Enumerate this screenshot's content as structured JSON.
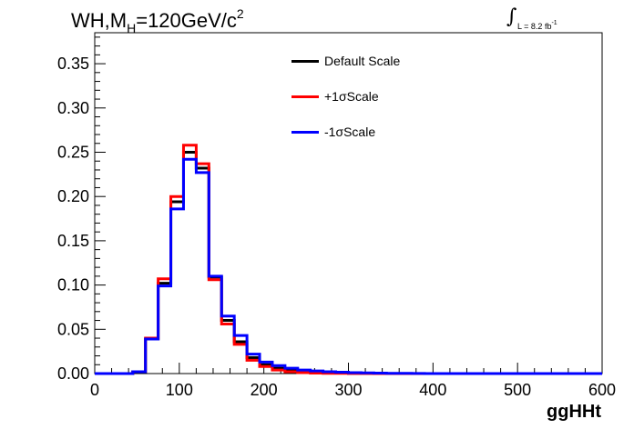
{
  "chart_data": {
    "type": "line",
    "title": "WH,M",
    "title_sub": "H",
    "title_rest": "=120GeV/c",
    "title_sup": "2",
    "luminosity": {
      "symbol": "∫",
      "text": "L = 8.2 fb",
      "sup": "-1"
    },
    "xlabel": "ggHHt",
    "ylabel": "",
    "xlim": [
      0,
      600
    ],
    "ylim": [
      0,
      0.385
    ],
    "xticks": [
      0,
      100,
      200,
      300,
      400,
      500,
      600
    ],
    "yticks": [
      0.0,
      0.05,
      0.1,
      0.15,
      0.2,
      0.25,
      0.3,
      0.35
    ],
    "ytick_labels": [
      "0.00",
      "0.05",
      "0.10",
      "0.15",
      "0.20",
      "0.25",
      "0.30",
      "0.35"
    ],
    "grid": false,
    "legend_position": "top-center",
    "bin_edges": [
      0,
      15,
      30,
      45,
      60,
      75,
      90,
      105,
      120,
      135,
      150,
      165,
      180,
      195,
      210,
      225,
      240,
      255,
      270,
      285,
      300,
      315,
      330,
      345,
      360,
      375,
      390,
      405,
      420,
      435,
      450,
      465,
      480,
      495,
      510,
      525,
      540,
      555,
      570,
      585,
      600
    ],
    "series": [
      {
        "name": "Default Scale",
        "color": "#000000",
        "values": [
          0,
          0,
          0,
          0.002,
          0.039,
          0.102,
          0.194,
          0.25,
          0.232,
          0.109,
          0.06,
          0.036,
          0.018,
          0.01,
          0.006,
          0.004,
          0.002,
          0.001,
          0.001,
          0.0005,
          0.0003,
          0.0002,
          0.0001,
          0,
          0,
          0,
          0,
          0,
          0,
          0,
          0,
          0,
          0,
          0,
          0,
          0,
          0,
          0,
          0,
          0
        ]
      },
      {
        "name": "+1σScale",
        "color": "#ff0000",
        "values": [
          0,
          0,
          0,
          0.002,
          0.04,
          0.107,
          0.2,
          0.258,
          0.237,
          0.106,
          0.056,
          0.033,
          0.015,
          0.008,
          0.004,
          0.002,
          0.001,
          0.0005,
          0.0003,
          0.0002,
          0.0001,
          0.0001,
          0,
          0,
          0,
          0,
          0,
          0,
          0,
          0,
          0,
          0,
          0,
          0,
          0,
          0,
          0,
          0,
          0,
          0
        ]
      },
      {
        "name": "-1σScale",
        "color": "#0000ff",
        "values": [
          0,
          0,
          0,
          0.002,
          0.039,
          0.099,
          0.186,
          0.242,
          0.227,
          0.11,
          0.065,
          0.043,
          0.022,
          0.013,
          0.009,
          0.006,
          0.004,
          0.003,
          0.002,
          0.0015,
          0.001,
          0.0008,
          0.0005,
          0.0003,
          0.0002,
          0.0001,
          0,
          0,
          0,
          0,
          0,
          0,
          0,
          0,
          0,
          0,
          0,
          0,
          0,
          0
        ]
      }
    ]
  }
}
